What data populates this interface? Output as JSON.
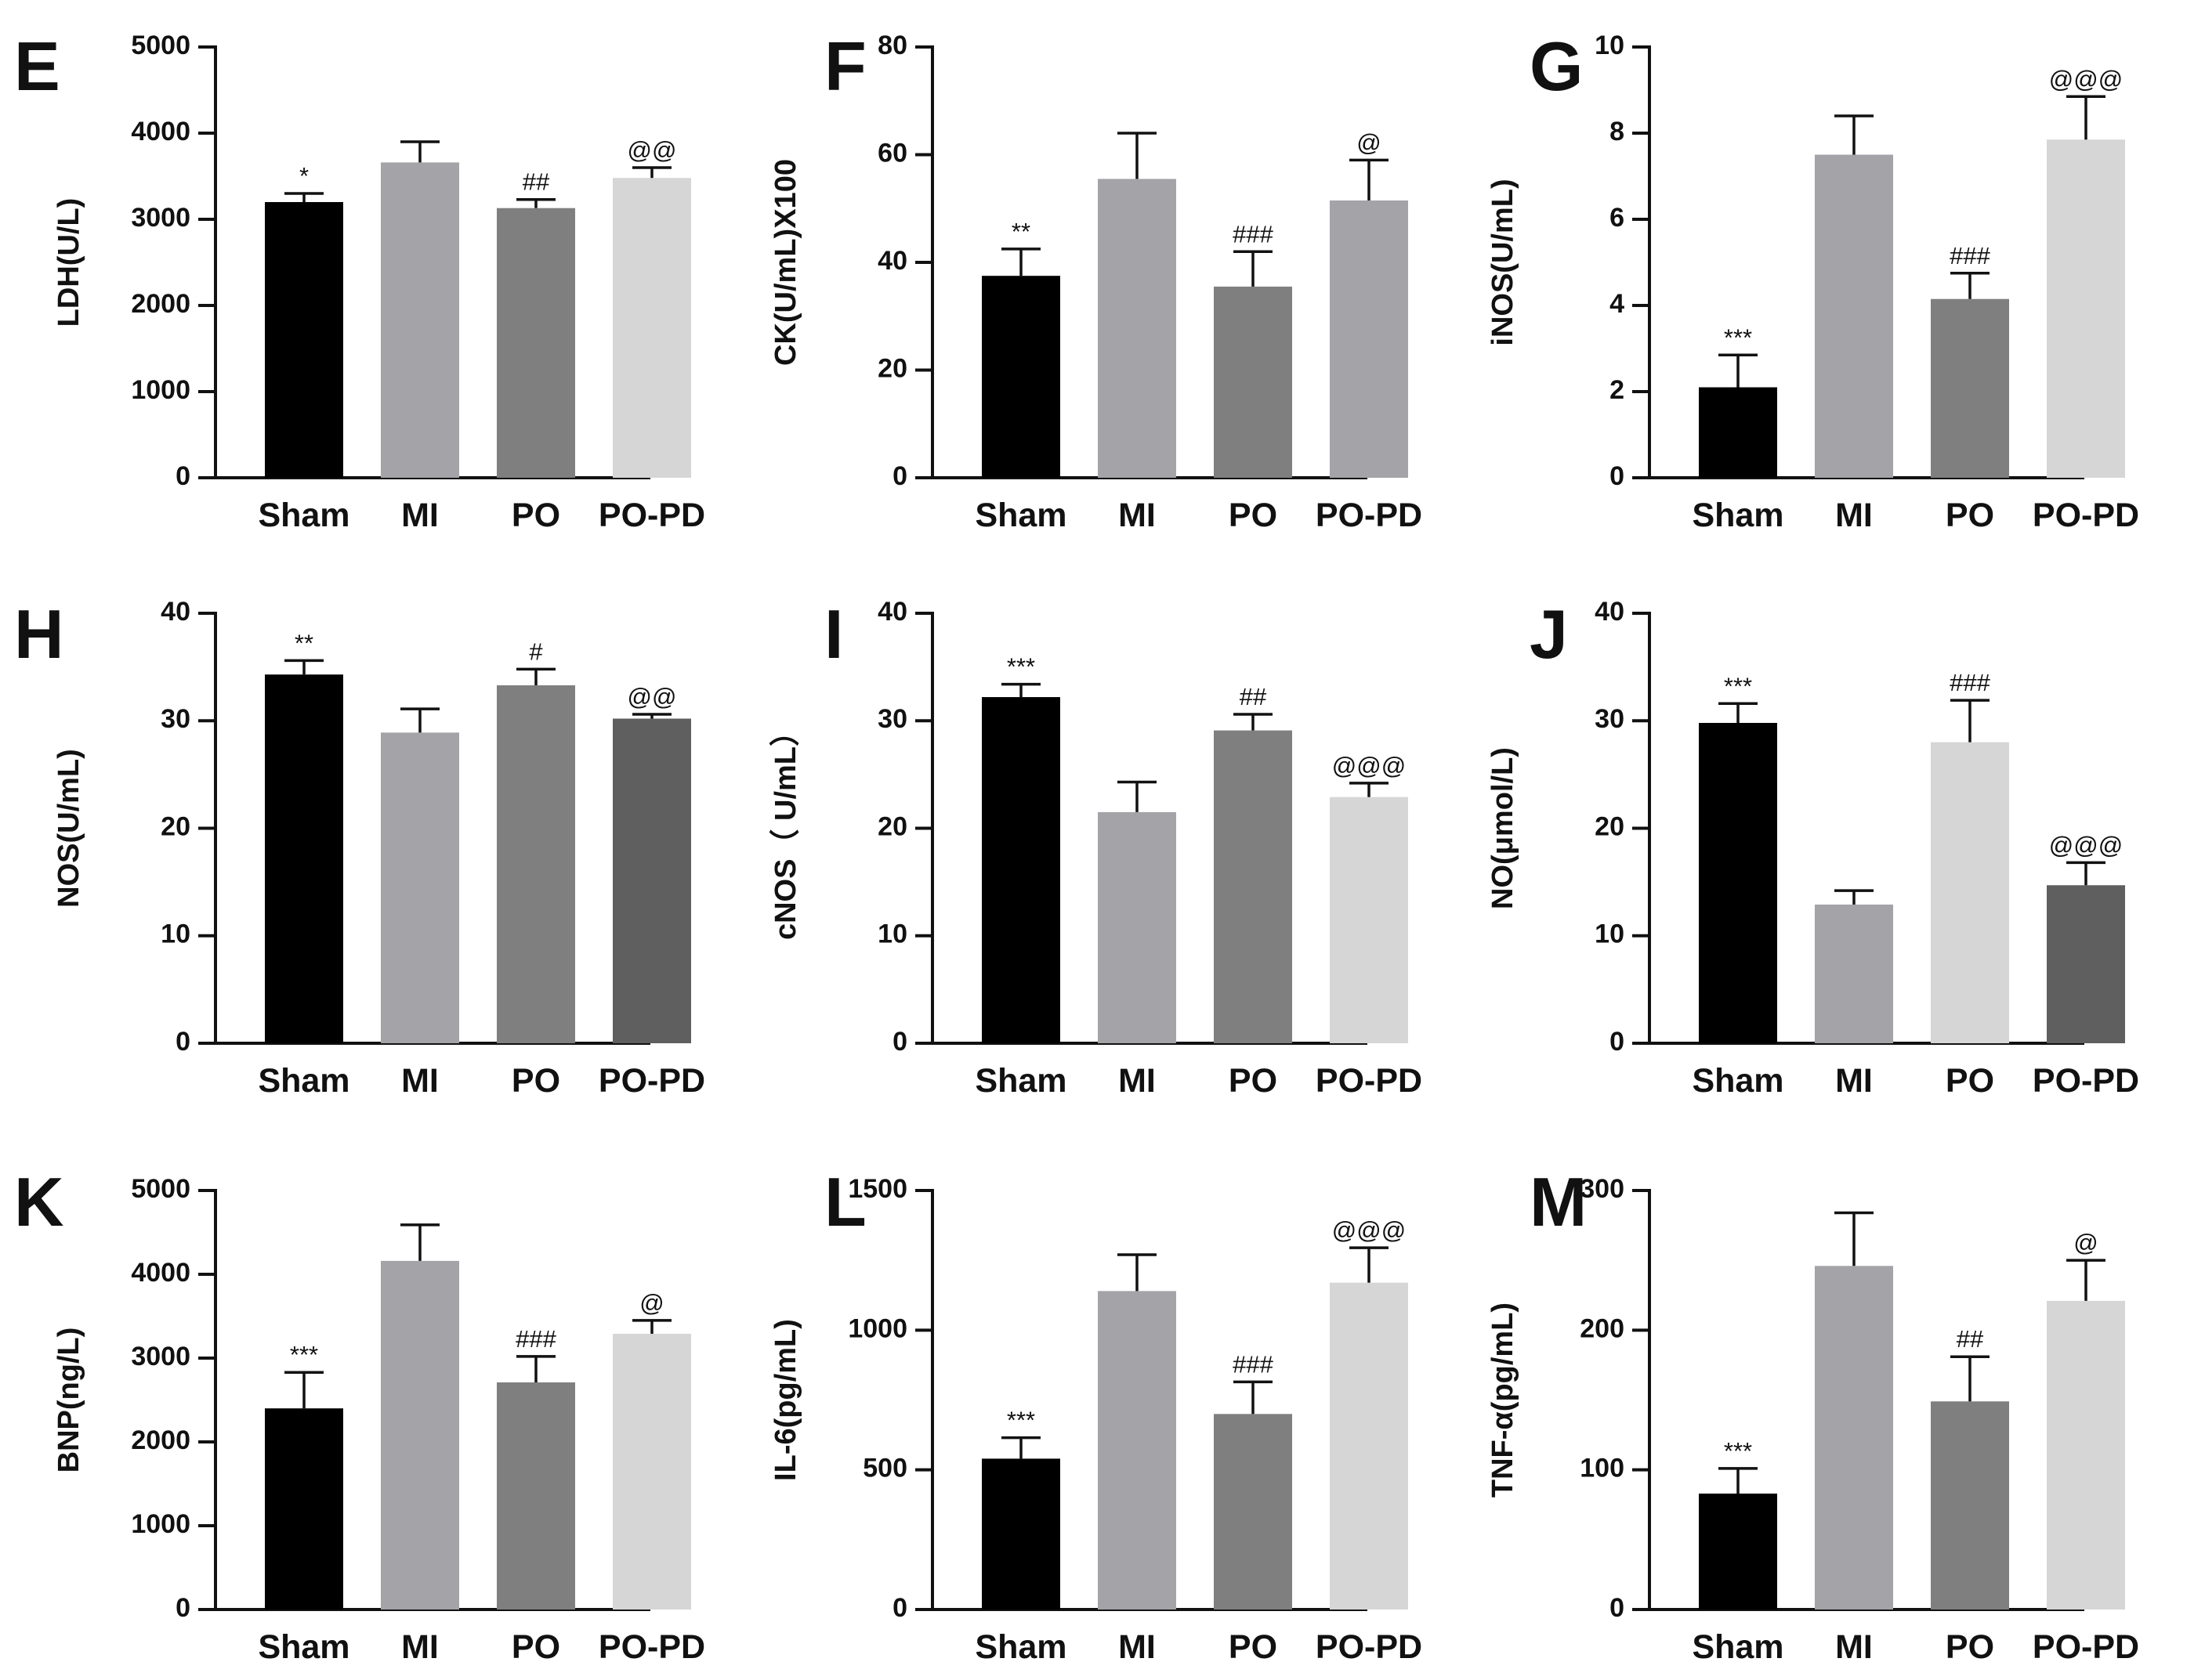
{
  "chart_data": [
    {
      "panel": "E",
      "type": "bar",
      "ylabel": "LDH(U/L)",
      "ylim": [
        0,
        5000
      ],
      "yticks": [
        0,
        1000,
        2000,
        3000,
        4000,
        5000
      ],
      "categories": [
        "Sham",
        "MI",
        "PO",
        "PO-PD"
      ],
      "values": [
        3200,
        3660,
        3130,
        3480
      ],
      "errors": [
        100,
        240,
        100,
        120
      ],
      "annotations": [
        "*",
        "",
        "##",
        "@@"
      ],
      "colors": [
        "#000000",
        "#a3a3a8",
        "#7f7f7f",
        "#d6d6d6"
      ]
    },
    {
      "panel": "F",
      "type": "bar",
      "ylabel": "CK(U/mL)X100",
      "ylim": [
        0,
        80
      ],
      "yticks": [
        0,
        20,
        40,
        60,
        80
      ],
      "categories": [
        "Sham",
        "MI",
        "PO",
        "PO-PD"
      ],
      "values": [
        37.5,
        55.5,
        35.5,
        51.5
      ],
      "errors": [
        5.0,
        8.5,
        6.5,
        7.5
      ],
      "annotations": [
        "**",
        "",
        "###",
        "@"
      ],
      "colors": [
        "#000000",
        "#a3a3a8",
        "#7f7f7f",
        "#a3a3a8"
      ]
    },
    {
      "panel": "G",
      "type": "bar",
      "ylabel": "iNOS(U/mL)",
      "ylim": [
        0,
        10
      ],
      "yticks": [
        0,
        2,
        4,
        6,
        8,
        10
      ],
      "categories": [
        "Sham",
        "MI",
        "PO",
        "PO-PD"
      ],
      "values": [
        2.1,
        7.5,
        4.15,
        7.85
      ],
      "errors": [
        0.75,
        0.9,
        0.6,
        1.0
      ],
      "annotations": [
        "***",
        "",
        "###",
        "@@@"
      ],
      "colors": [
        "#000000",
        "#a3a3a8",
        "#7f7f7f",
        "#d6d6d6"
      ]
    },
    {
      "panel": "H",
      "type": "bar",
      "ylabel": "NOS(U/mL)",
      "ylim": [
        0,
        40
      ],
      "yticks": [
        0,
        10,
        20,
        30,
        40
      ],
      "categories": [
        "Sham",
        "MI",
        "PO",
        "PO-PD"
      ],
      "values": [
        34.3,
        28.9,
        33.3,
        30.2
      ],
      "errors": [
        1.3,
        2.2,
        1.5,
        0.4
      ],
      "annotations": [
        "**",
        "",
        "#",
        "@@"
      ],
      "colors": [
        "#000000",
        "#a3a3a8",
        "#7f7f7f",
        "#5f5f5f"
      ]
    },
    {
      "panel": "I",
      "type": "bar",
      "ylabel": "cNOS（ U/mL）",
      "ylim": [
        0,
        40
      ],
      "yticks": [
        0,
        10,
        20,
        30,
        40
      ],
      "categories": [
        "Sham",
        "MI",
        "PO",
        "PO-PD"
      ],
      "values": [
        32.2,
        21.5,
        29.1,
        22.9
      ],
      "errors": [
        1.2,
        2.8,
        1.5,
        1.3
      ],
      "annotations": [
        "***",
        "",
        "##",
        "@@@"
      ],
      "colors": [
        "#000000",
        "#a3a3a8",
        "#7f7f7f",
        "#d6d6d6"
      ]
    },
    {
      "panel": "J",
      "type": "bar",
      "ylabel": "NO(μmol/L)",
      "ylim": [
        0,
        40
      ],
      "yticks": [
        0,
        10,
        20,
        30,
        40
      ],
      "categories": [
        "Sham",
        "MI",
        "PO",
        "PO-PD"
      ],
      "values": [
        29.8,
        12.9,
        28.0,
        14.7
      ],
      "errors": [
        1.8,
        1.3,
        3.9,
        2.1
      ],
      "annotations": [
        "***",
        "",
        "###",
        "@@@"
      ],
      "colors": [
        "#000000",
        "#a3a3a8",
        "#d6d6d6",
        "#5f5f5f"
      ]
    },
    {
      "panel": "K",
      "type": "bar",
      "ylabel": "BNP(ng/L)",
      "ylim": [
        0,
        5000
      ],
      "yticks": [
        0,
        1000,
        2000,
        3000,
        4000,
        5000
      ],
      "categories": [
        "Sham",
        "MI",
        "PO",
        "PO-PD"
      ],
      "values": [
        2400,
        4160,
        2710,
        3290
      ],
      "errors": [
        430,
        430,
        310,
        160
      ],
      "annotations": [
        "***",
        "",
        "###",
        "@"
      ],
      "colors": [
        "#000000",
        "#a3a3a8",
        "#7f7f7f",
        "#d6d6d6"
      ]
    },
    {
      "panel": "L",
      "type": "bar",
      "ylabel": "IL-6(pg/mL)",
      "ylim": [
        0,
        1500
      ],
      "yticks": [
        0,
        500,
        1000,
        1500
      ],
      "categories": [
        "Sham",
        "MI",
        "PO",
        "PO-PD"
      ],
      "values": [
        540,
        1140,
        700,
        1170
      ],
      "errors": [
        75,
        130,
        115,
        125
      ],
      "annotations": [
        "***",
        "",
        "###",
        "@@@"
      ],
      "colors": [
        "#000000",
        "#a3a3a8",
        "#7f7f7f",
        "#d6d6d6"
      ]
    },
    {
      "panel": "M",
      "type": "bar",
      "ylabel": "TNF-α(pg/mL)",
      "ylim": [
        0,
        300
      ],
      "yticks": [
        0,
        100,
        200,
        300
      ],
      "categories": [
        "Sham",
        "MI",
        "PO",
        "PO-PD"
      ],
      "values": [
        83,
        246,
        149,
        221
      ],
      "errors": [
        18,
        38,
        32,
        29
      ],
      "annotations": [
        "***",
        "",
        "##",
        "@"
      ],
      "colors": [
        "#000000",
        "#a3a3a8",
        "#7f7f7f",
        "#d6d6d6"
      ]
    }
  ]
}
